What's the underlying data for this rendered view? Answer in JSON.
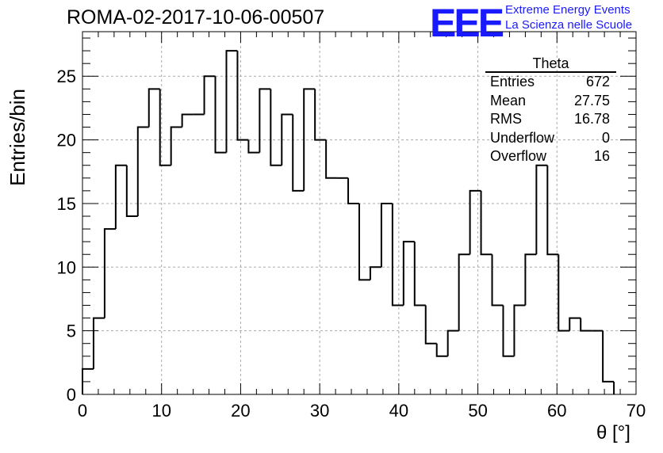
{
  "header": {
    "title": "ROMA-02-2017-10-06-00507",
    "logo": "EEE",
    "logo_line1": "Extreme Energy Events",
    "logo_line2": "La Scienza nelle Scuole"
  },
  "stats": {
    "name": "Theta",
    "rows": [
      {
        "label": "Entries",
        "value": "672"
      },
      {
        "label": "Mean",
        "value": "27.75"
      },
      {
        "label": "RMS",
        "value": "16.78"
      },
      {
        "label": "Underflow",
        "value": "0"
      },
      {
        "label": "Overflow",
        "value": "16"
      }
    ]
  },
  "chart_data": {
    "type": "histogram",
    "xlabel": "θ [°]",
    "ylabel": "Entries/bin",
    "xlim": [
      0,
      70
    ],
    "ylim": [
      0,
      28.5
    ],
    "bin_width": 1.4,
    "bin_start": 0,
    "values": [
      2,
      6,
      13,
      18,
      14,
      21,
      24,
      18,
      21,
      22,
      22,
      25,
      19,
      27,
      20,
      19,
      24,
      18,
      22,
      16,
      24,
      20,
      17,
      17,
      15,
      9,
      10,
      15,
      7,
      12,
      7,
      4,
      3,
      5,
      11,
      16,
      11,
      7,
      3,
      7,
      11,
      18,
      11,
      5,
      6,
      5,
      5,
      1
    ],
    "xticks": [
      0,
      10,
      20,
      30,
      40,
      50,
      60,
      70
    ],
    "yticks": [
      0,
      5,
      10,
      15,
      20,
      25
    ],
    "grid": true,
    "line_color": "#000000",
    "grid_color": "#aaaaaa"
  }
}
